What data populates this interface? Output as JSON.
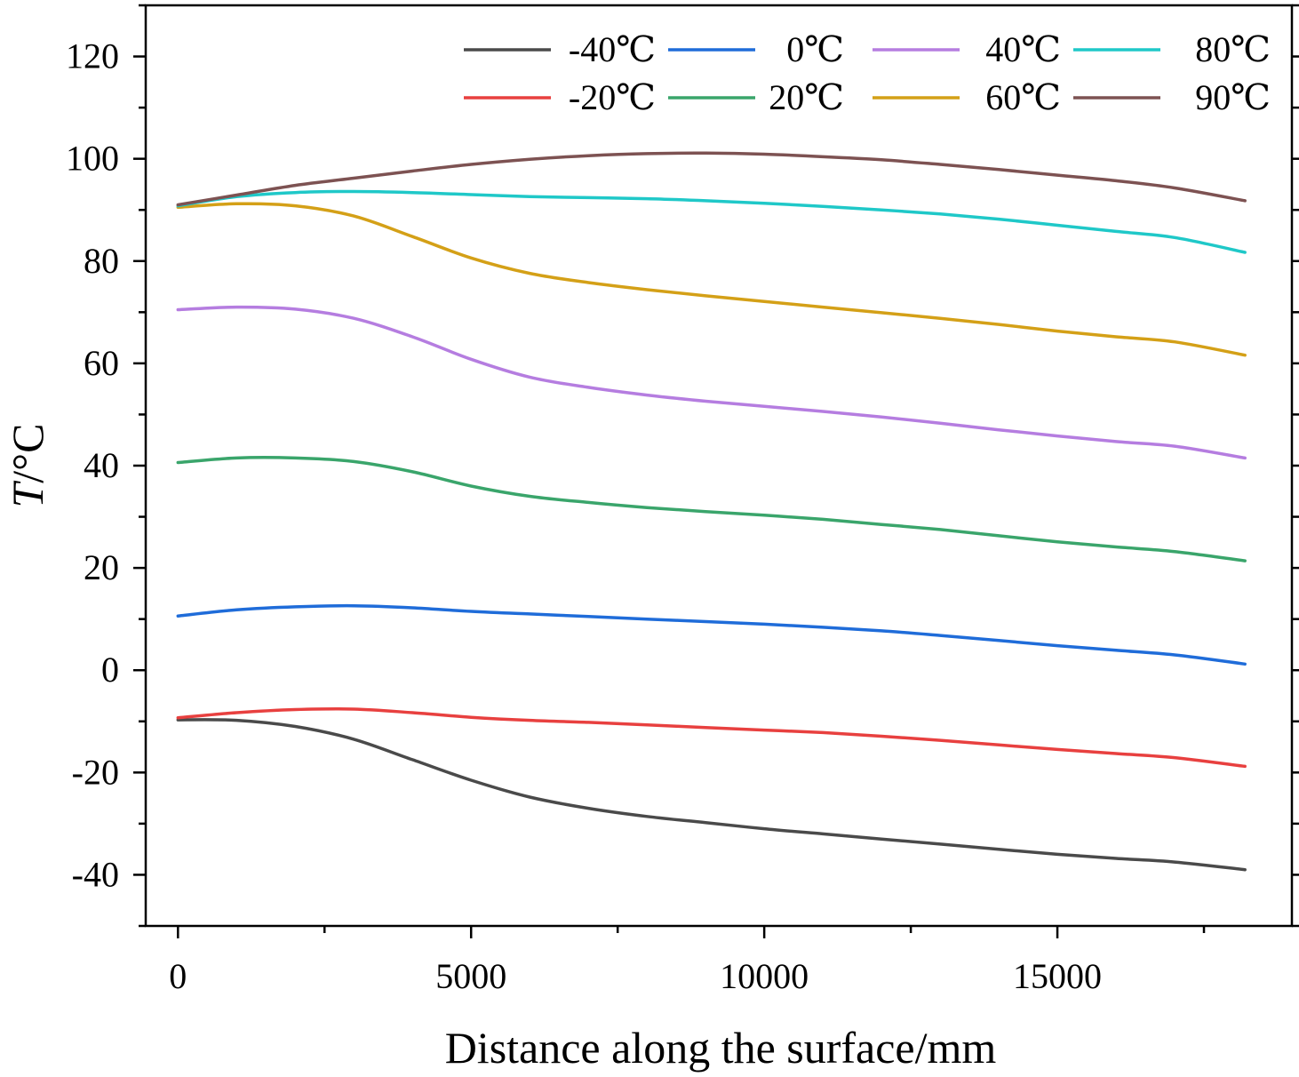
{
  "chart_data": {
    "type": "line",
    "title": "",
    "xlabel": "Distance along the surface/mm",
    "ylabel_italic": "T",
    "ylabel_rest": "/°C",
    "xlim": [
      -550,
      19000
    ],
    "ylim": [
      -50,
      130
    ],
    "xticks": [
      0,
      5000,
      10000,
      15000
    ],
    "xticks_minor": [
      2500,
      7500,
      12500,
      17500
    ],
    "xtick_labels": [
      "0",
      "5000",
      "10000",
      "15000"
    ],
    "yticks": [
      -40,
      -20,
      0,
      20,
      40,
      60,
      80,
      100,
      120
    ],
    "ytick_labels": [
      "-40",
      "-20",
      "0",
      "20",
      "40",
      "60",
      "80",
      "100",
      "120"
    ],
    "grid": false,
    "legend_position": "top-right",
    "series": [
      {
        "name": "-40℃",
        "color": "#4a4a4a",
        "x": [
          0,
          1000,
          2000,
          3000,
          4000,
          5000,
          6000,
          7000,
          8000,
          9000,
          10000,
          11000,
          12000,
          13000,
          14000,
          15000,
          16000,
          17000,
          18200
        ],
        "y": [
          -9.7,
          -9.8,
          -11,
          -13.5,
          -17.5,
          -21.5,
          -24.8,
          -27,
          -28.6,
          -29.8,
          -31,
          -32,
          -33,
          -34,
          -35,
          -36,
          -36.8,
          -37.5,
          -39
        ]
      },
      {
        "name": "-20℃",
        "color": "#e8403f",
        "x": [
          0,
          1000,
          2000,
          3000,
          4000,
          5000,
          6000,
          7000,
          8000,
          9000,
          10000,
          11000,
          12000,
          13000,
          14000,
          15000,
          16000,
          17000,
          18200
        ],
        "y": [
          -9.3,
          -8.3,
          -7.7,
          -7.6,
          -8.3,
          -9.2,
          -9.8,
          -10.2,
          -10.7,
          -11.2,
          -11.7,
          -12.2,
          -12.9,
          -13.7,
          -14.6,
          -15.5,
          -16.3,
          -17.1,
          -18.8
        ]
      },
      {
        "name": "0℃",
        "color": "#1f6cd9",
        "x": [
          0,
          1000,
          2000,
          3000,
          4000,
          5000,
          6000,
          7000,
          8000,
          9000,
          10000,
          11000,
          12000,
          13000,
          14000,
          15000,
          16000,
          17000,
          18200
        ],
        "y": [
          10.6,
          11.8,
          12.4,
          12.6,
          12.2,
          11.5,
          11,
          10.5,
          10,
          9.5,
          9,
          8.4,
          7.7,
          6.8,
          5.8,
          4.8,
          3.9,
          3,
          1.2
        ]
      },
      {
        "name": "20℃",
        "color": "#3aa56b",
        "x": [
          0,
          1000,
          2000,
          3000,
          4000,
          5000,
          6000,
          7000,
          8000,
          9000,
          10000,
          11000,
          12000,
          13000,
          14000,
          15000,
          16000,
          17000,
          18200
        ],
        "y": [
          40.6,
          41.5,
          41.5,
          40.8,
          38.8,
          36,
          34,
          32.8,
          31.8,
          31,
          30.3,
          29.5,
          28.5,
          27.5,
          26.3,
          25.1,
          24.1,
          23.2,
          21.4
        ]
      },
      {
        "name": "40℃",
        "color": "#b57de0",
        "x": [
          0,
          1000,
          2000,
          3000,
          4000,
          5000,
          6000,
          7000,
          8000,
          9000,
          10000,
          11000,
          12000,
          13000,
          14000,
          15000,
          16000,
          17000,
          18200
        ],
        "y": [
          70.5,
          71,
          70.6,
          68.8,
          65.2,
          60.8,
          57.3,
          55.3,
          53.8,
          52.6,
          51.6,
          50.6,
          49.5,
          48.3,
          47,
          45.8,
          44.7,
          43.8,
          41.5
        ]
      },
      {
        "name": "60℃",
        "color": "#d4a017",
        "x": [
          0,
          1000,
          2000,
          3000,
          4000,
          5000,
          6000,
          7000,
          8000,
          9000,
          10000,
          11000,
          12000,
          13000,
          14000,
          15000,
          16000,
          17000,
          18200
        ],
        "y": [
          90.5,
          91.2,
          90.8,
          88.8,
          84.8,
          80.6,
          77.6,
          75.8,
          74.4,
          73.2,
          72.1,
          71,
          69.9,
          68.8,
          67.6,
          66.3,
          65.2,
          64.2,
          61.6
        ]
      },
      {
        "name": "80℃",
        "color": "#1fc8c8",
        "x": [
          0,
          1000,
          2000,
          3000,
          4000,
          5000,
          6000,
          7000,
          8000,
          9000,
          10000,
          11000,
          12000,
          13000,
          14000,
          15000,
          16000,
          17000,
          18200
        ],
        "y": [
          90.8,
          92.6,
          93.4,
          93.6,
          93.4,
          93,
          92.6,
          92.4,
          92.2,
          91.8,
          91.3,
          90.7,
          90,
          89.2,
          88.2,
          87,
          85.8,
          84.6,
          81.7
        ]
      },
      {
        "name": "90℃",
        "color": "#7d5252",
        "x": [
          0,
          1000,
          2000,
          3000,
          4000,
          5000,
          6000,
          7000,
          8000,
          9000,
          10000,
          11000,
          12000,
          13000,
          14000,
          15000,
          16000,
          17000,
          18200
        ],
        "y": [
          91,
          92.9,
          94.8,
          96.2,
          97.6,
          98.9,
          99.9,
          100.6,
          101,
          101.1,
          100.9,
          100.4,
          99.8,
          98.9,
          97.9,
          96.8,
          95.7,
          94.3,
          91.8
        ]
      }
    ]
  }
}
